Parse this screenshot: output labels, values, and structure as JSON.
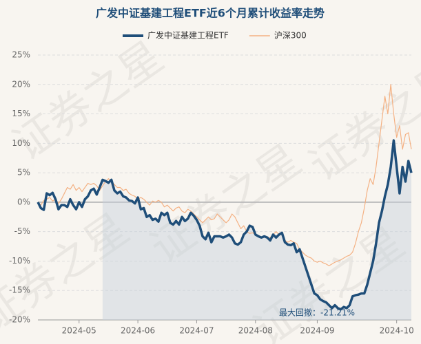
{
  "chart_data": {
    "type": "line",
    "title": "广发中证基建工程ETF近6个月累计收益率走势",
    "watermark": "证券之星",
    "annotation": "最大回撤：-21.21%",
    "categories": [
      null,
      null,
      null,
      null,
      null,
      null,
      null,
      null,
      null,
      null,
      null,
      null,
      null,
      null,
      "2024-05",
      null,
      null,
      null,
      null,
      null,
      null,
      null,
      null,
      null,
      null,
      null,
      null,
      null,
      null,
      null,
      null,
      null,
      null,
      null,
      "2024-06",
      null,
      null,
      null,
      null,
      null,
      null,
      null,
      null,
      null,
      null,
      null,
      null,
      null,
      null,
      null,
      null,
      null,
      null,
      null,
      "2024-07",
      null,
      null,
      null,
      null,
      null,
      null,
      null,
      null,
      null,
      null,
      null,
      null,
      null,
      null,
      null,
      null,
      null,
      null,
      null,
      "2024-08",
      null,
      null,
      null,
      null,
      null,
      null,
      null,
      null,
      null,
      null,
      null,
      null,
      null,
      null,
      null,
      null,
      null,
      null,
      null,
      null,
      "2024-09",
      null,
      null,
      null,
      null,
      null,
      null,
      null,
      null,
      null,
      null,
      null,
      null,
      null,
      null,
      null,
      null,
      null,
      null,
      null,
      null,
      null,
      null,
      null,
      null,
      null,
      null,
      "2024-10",
      null,
      null,
      null,
      null,
      null
    ],
    "series": [
      {
        "name": "广发中证基建工程ETF",
        "color": "#1f4e79",
        "values": [
          0,
          -1,
          -1.3,
          1.5,
          1.2,
          1.6,
          0.5,
          -1.2,
          -0.5,
          -0.5,
          -0.8,
          0.5,
          -0.5,
          -1.2,
          0,
          -0.8,
          0.5,
          1,
          2,
          2.3,
          1.3,
          2.5,
          3.8,
          3.6,
          3.3,
          3.8,
          2,
          1.5,
          1.8,
          1,
          0.8,
          0.3,
          0.2,
          -0.2,
          0.8,
          -1.2,
          -1,
          -2.5,
          -2.2,
          -3,
          -2.8,
          -3.3,
          -1.8,
          -2.2,
          -1.8,
          -3.5,
          -3.8,
          -3.2,
          -3.8,
          -2.5,
          -3.2,
          -2.8,
          -1.8,
          -2.3,
          -3,
          -4,
          -5.8,
          -6.3,
          -5.2,
          -6.8,
          -5.8,
          -5.8,
          -5.8,
          -6,
          -5.8,
          -5.5,
          -6,
          -7,
          -7.2,
          -6.8,
          -5.5,
          -5,
          -4,
          -4.2,
          -5.5,
          -5.8,
          -6,
          -5.8,
          -6,
          -6.5,
          -5.5,
          -6,
          -5.5,
          -5.2,
          -6.8,
          -7.2,
          -7.3,
          -7,
          -8.5,
          -8,
          -9.5,
          -11,
          -12.5,
          -14,
          -15.5,
          -15.8,
          -16.5,
          -16.8,
          -17,
          -17.5,
          -18,
          -17.5,
          -18,
          -18.2,
          -17.8,
          -18,
          -17.5,
          -16,
          -15.8,
          -15.7,
          -15.5,
          -15.5,
          -14,
          -12,
          -10,
          -7,
          -3.5,
          -1.5,
          1,
          3,
          6,
          10.5,
          6,
          1.5,
          6,
          3.5,
          7,
          5
        ]
      },
      {
        "name": "沪深300",
        "color": "#f4b183",
        "values": [
          0,
          -0.5,
          0.3,
          0.5,
          0.8,
          0.2,
          0.5,
          -0.2,
          0.5,
          1.5,
          2.5,
          2.2,
          3.0,
          2.0,
          2.5,
          1.8,
          2.5,
          3.2,
          3.0,
          3.2,
          2.8,
          2.0,
          2.8,
          3.5,
          4.0,
          3.5,
          3.0,
          2.5,
          2.5,
          2.0,
          2.2,
          1.5,
          1.2,
          1.0,
          0.5,
          0.8,
          0.5,
          0.0,
          -0.5,
          0.2,
          0.0,
          0.3,
          0.0,
          -0.8,
          -0.5,
          -1.0,
          -1.5,
          -1.0,
          -0.8,
          -1.5,
          -1.8,
          -1.2,
          -1.5,
          -2.0,
          -2.5,
          -3.0,
          -3.5,
          -3.0,
          -2.5,
          -3.0,
          -2.8,
          -2.0,
          -2.5,
          -3.0,
          -3.5,
          -3.0,
          -2.0,
          -2.5,
          -3.5,
          -4.5,
          -4.0,
          -5.0,
          -5.3,
          -5.2,
          -5.5,
          -5.8,
          -6.0,
          -5.8,
          -6.2,
          -6.0,
          -5.5,
          -5.0,
          -5.5,
          -5.5,
          -6.5,
          -6.8,
          -6.5,
          -6.8,
          -7.0,
          -8.0,
          -8.5,
          -9.0,
          -9.3,
          -9.5,
          -10.0,
          -10.2,
          -10.0,
          -10.3,
          -10.5,
          -10.8,
          -10.5,
          -10.2,
          -10.0,
          -9.8,
          -9.5,
          -9.2,
          -9.0,
          -8.5,
          -7.0,
          -5.0,
          -3.5,
          -1.0,
          2.0,
          4.0,
          3.0,
          6.0,
          10.0,
          14.0,
          18.0,
          15.0,
          20.0,
          15.0,
          11.0,
          13.0,
          9.0,
          11.5,
          11.8,
          9.0
        ]
      }
    ],
    "ylim": [
      -20,
      25
    ],
    "yticks": [
      {
        "value": -20,
        "label": "-20%"
      },
      {
        "value": -15,
        "label": "-15%"
      },
      {
        "value": -10,
        "label": "-10%"
      },
      {
        "value": -5,
        "label": "-5%"
      },
      {
        "value": 0,
        "label": "0%"
      },
      {
        "value": 5,
        "label": "5%"
      },
      {
        "value": 10,
        "label": "10%"
      },
      {
        "value": 15,
        "label": "15%"
      },
      {
        "value": 20,
        "label": "20%"
      },
      {
        "value": 25,
        "label": "25%"
      }
    ],
    "grid": true,
    "legend": "top"
  }
}
